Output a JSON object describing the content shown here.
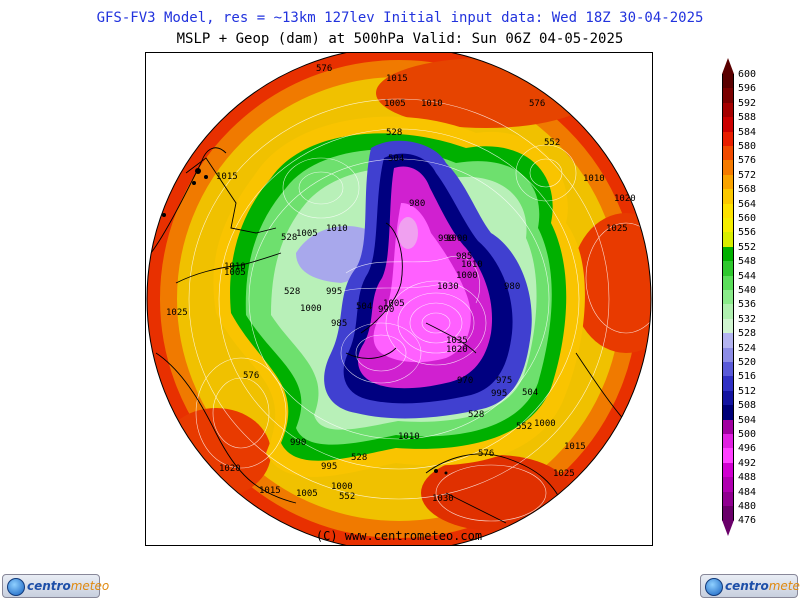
{
  "header": {
    "line1": "GFS-FV3 Model, res = ~13km 127lev   Initial input data: Wed 18Z 30-04-2025",
    "line2": "MSLP + Geop (dam) at 500hPa  Valid: Sun 06Z 04-05-2025"
  },
  "map": {
    "copyright": "(C) www.centrometeo.com",
    "isobar_labels": [
      {
        "text": "576"
      },
      {
        "text": "1015"
      },
      {
        "text": "1010"
      },
      {
        "text": "1005"
      },
      {
        "text": "528"
      },
      {
        "text": "576"
      },
      {
        "text": "552"
      },
      {
        "text": "504"
      },
      {
        "text": "1015"
      },
      {
        "text": "1010"
      },
      {
        "text": "1020"
      },
      {
        "text": "980"
      },
      {
        "text": "1005"
      },
      {
        "text": "1025"
      },
      {
        "text": "528"
      },
      {
        "text": "1010"
      },
      {
        "text": "990"
      },
      {
        "text": "1000"
      },
      {
        "text": "1010"
      },
      {
        "text": "1005"
      },
      {
        "text": "985"
      },
      {
        "text": "1010"
      },
      {
        "text": "1000"
      },
      {
        "text": "528"
      },
      {
        "text": "995"
      },
      {
        "text": "1005"
      },
      {
        "text": "1030"
      },
      {
        "text": "980"
      },
      {
        "text": "1025"
      },
      {
        "text": "504"
      },
      {
        "text": "990"
      },
      {
        "text": "1035"
      },
      {
        "text": "1000"
      },
      {
        "text": "985"
      },
      {
        "text": "1020"
      },
      {
        "text": "576"
      },
      {
        "text": "970"
      },
      {
        "text": "975"
      },
      {
        "text": "504"
      },
      {
        "text": "995"
      },
      {
        "text": "528"
      },
      {
        "text": "552"
      },
      {
        "text": "1000"
      },
      {
        "text": "1010"
      },
      {
        "text": "576"
      },
      {
        "text": "1015"
      },
      {
        "text": "1020"
      },
      {
        "text": "990"
      },
      {
        "text": "528"
      },
      {
        "text": "995"
      },
      {
        "text": "1025"
      },
      {
        "text": "1015"
      },
      {
        "text": "1005"
      },
      {
        "text": "1000"
      },
      {
        "text": "552"
      },
      {
        "text": "1030"
      }
    ]
  },
  "colorbar": {
    "labels": [
      "600",
      "596",
      "592",
      "588",
      "584",
      "580",
      "576",
      "572",
      "568",
      "564",
      "560",
      "556",
      "552",
      "548",
      "544",
      "540",
      "536",
      "532",
      "528",
      "524",
      "520",
      "516",
      "512",
      "508",
      "504",
      "500",
      "496",
      "492",
      "488",
      "484",
      "480",
      "476"
    ],
    "colors": [
      "#5a0000",
      "#7a0000",
      "#a50000",
      "#cc0000",
      "#e81e00",
      "#f04a00",
      "#f57a00",
      "#f9a300",
      "#fbc800",
      "#fde200",
      "#f5ee00",
      "#d8ee00",
      "#00b000",
      "#2ec82e",
      "#5ade5a",
      "#8aeb8a",
      "#b0f0b0",
      "#d0f5d0",
      "#b4b4f0",
      "#8c8ce6",
      "#5a5ad8",
      "#3030c4",
      "#1414a0",
      "#000078",
      "#a000a0",
      "#e020e0",
      "#ff40ff",
      "#d000d0",
      "#b000b0",
      "#900090",
      "#6a006a"
    ]
  },
  "logos": {
    "brand_prefix": "centro",
    "brand_suffix": "meteo"
  }
}
